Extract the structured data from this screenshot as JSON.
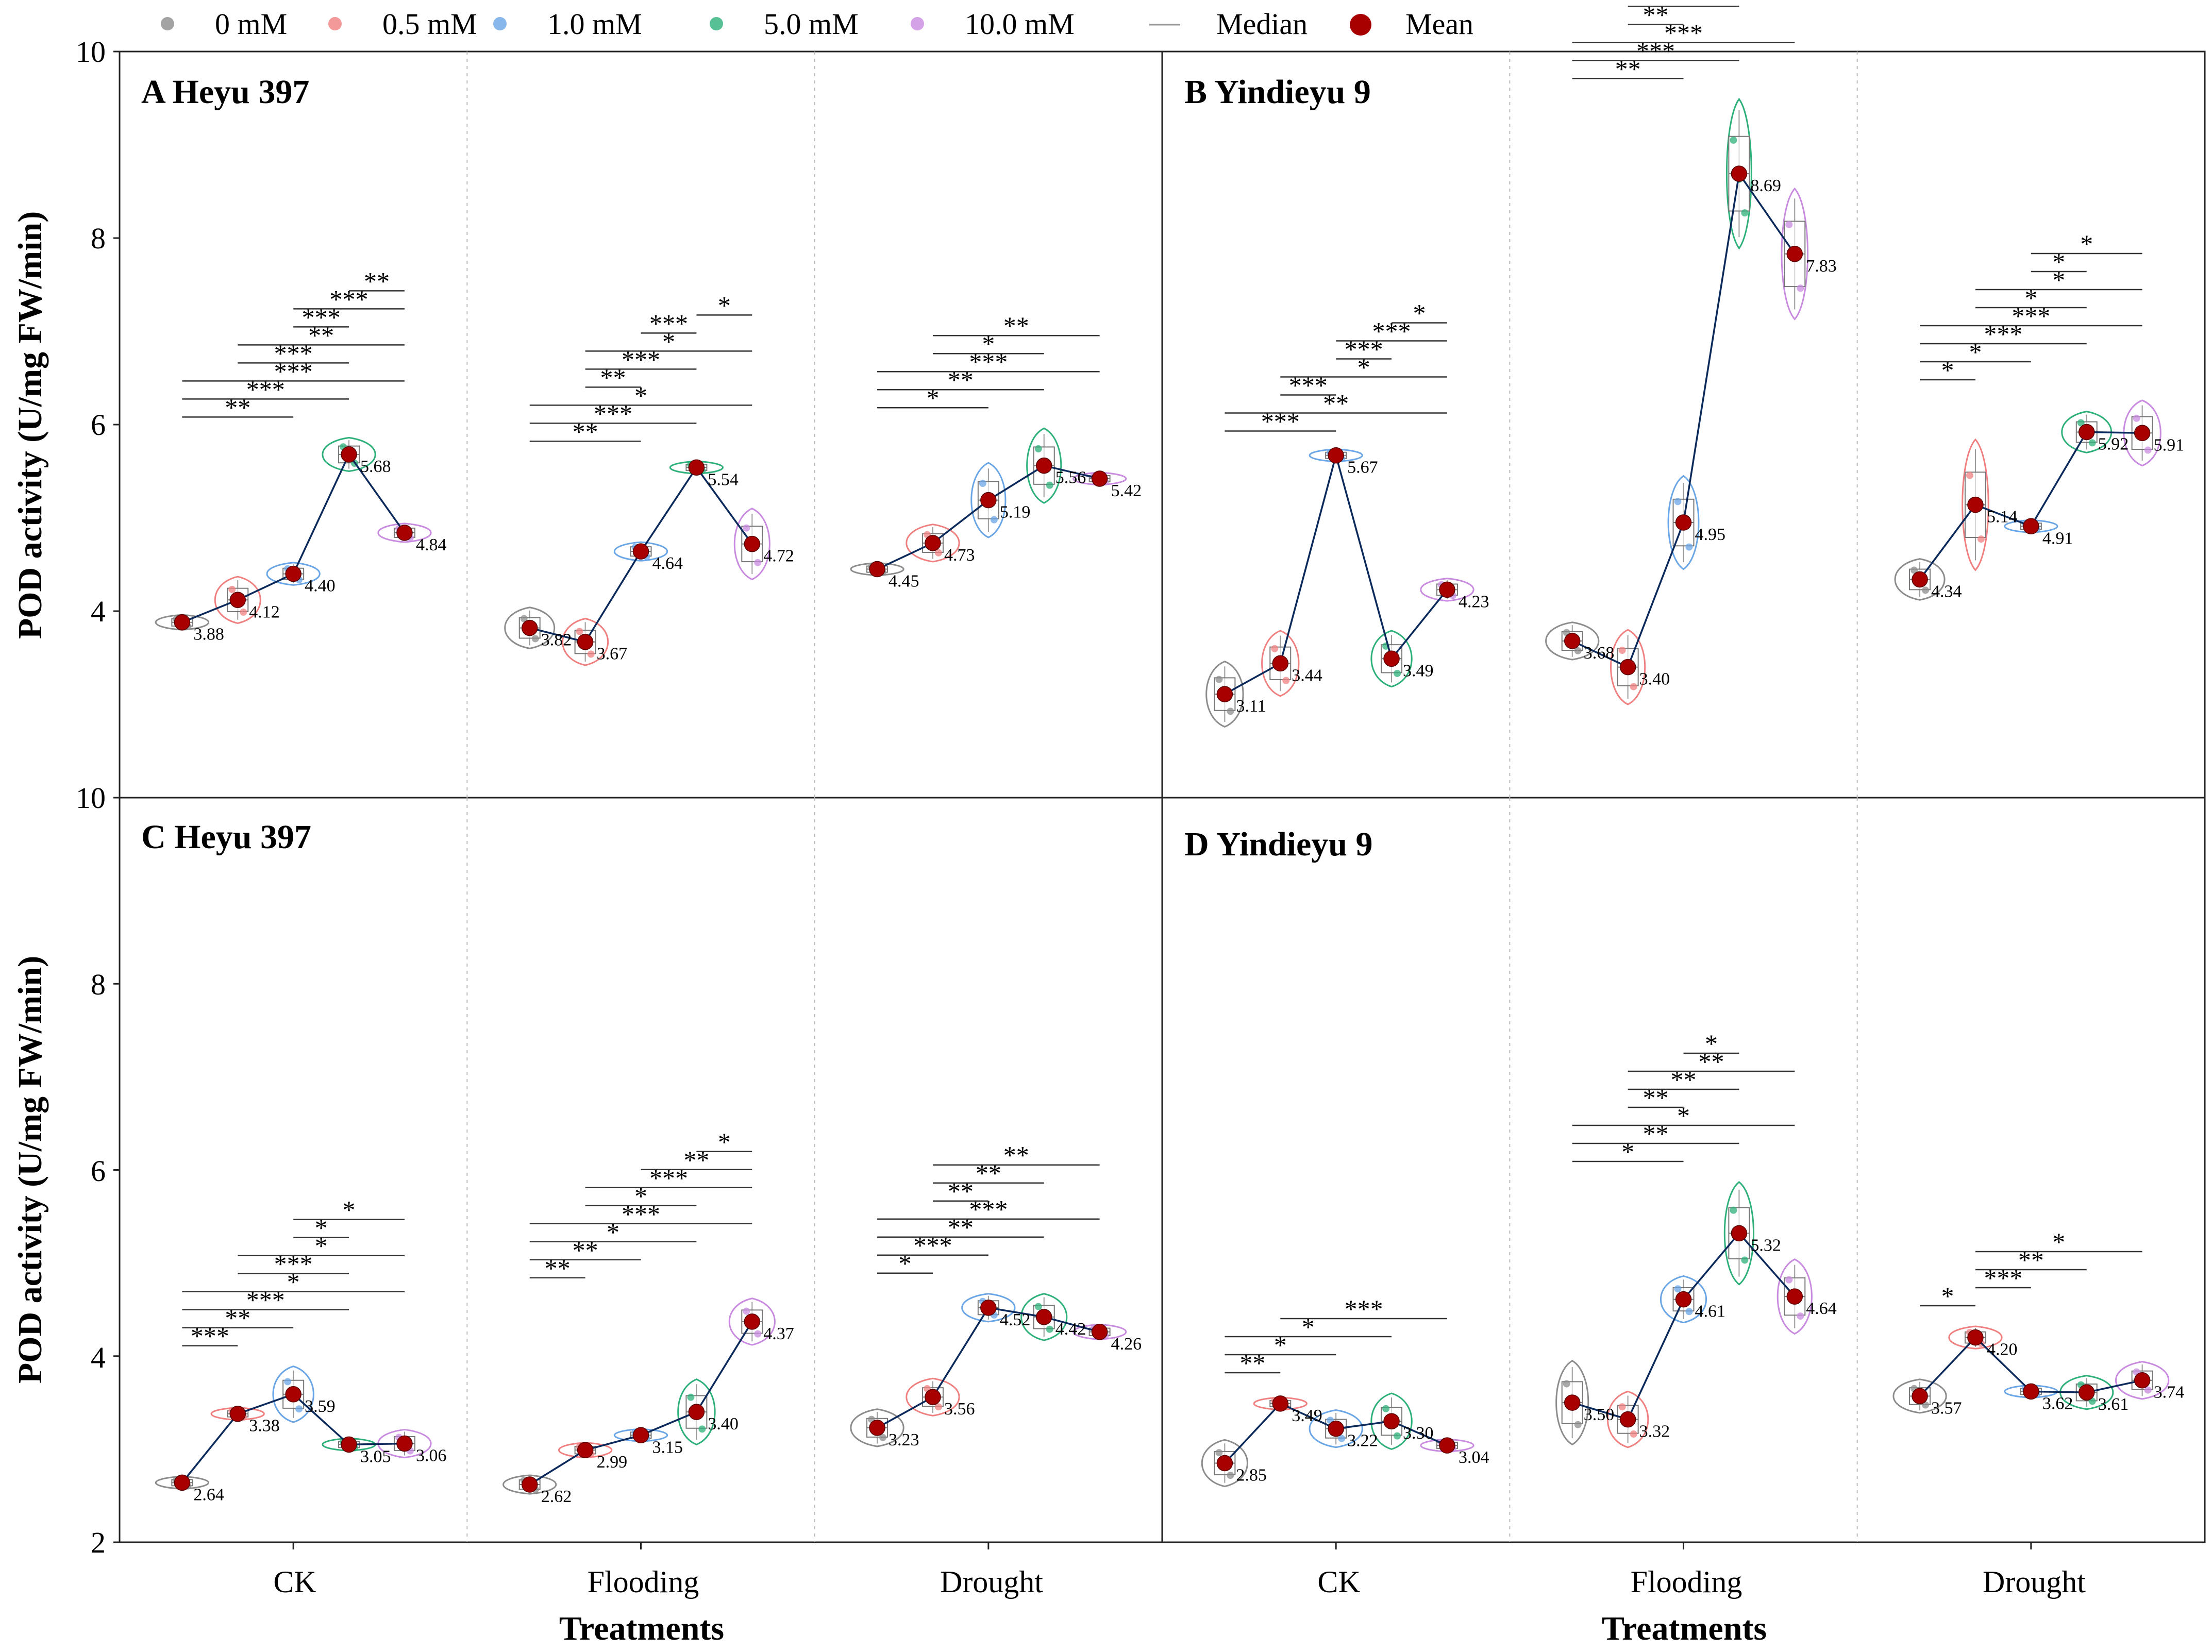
{
  "legend": {
    "items": [
      {
        "label": "0 mM",
        "color": "#8c8c8c"
      },
      {
        "label": "0.5 mM",
        "color": "#f08080"
      },
      {
        "label": "1.0 mM",
        "color": "#6aa6e6"
      },
      {
        "label": "5.0 mM",
        "color": "#2eb07a"
      },
      {
        "label": "10.0 mM",
        "color": "#c98be0"
      }
    ],
    "median_label": "Median",
    "mean_label": "Mean",
    "mean_color": "#a80000",
    "line_color": "#0b2a5b"
  },
  "axes": {
    "ylabel": "POD activity (U/mg FW/min)",
    "xlabel": "Treatments",
    "top_ylim": [
      2,
      10
    ],
    "top_yticks": [
      "10",
      "8",
      "6",
      "4"
    ],
    "bottom_ylim": [
      2,
      10
    ],
    "bottom_yticks": [
      "10",
      "8",
      "6",
      "4",
      "2"
    ],
    "categories": [
      "CK",
      "Flooding",
      "Drought"
    ],
    "grid": "dotted vertical separators between treatments"
  },
  "chart_data": [
    {
      "type": "box-violin",
      "panel": "A Heyu 397",
      "categories": [
        "CK",
        "Flooding",
        "Drought"
      ],
      "series_labels": [
        "0 mM",
        "0.5 mM",
        "1.0 mM",
        "5.0 mM",
        "10.0 mM"
      ],
      "means": [
        [
          3.88,
          4.12,
          4.4,
          5.68,
          4.84
        ],
        [
          3.82,
          3.67,
          4.64,
          5.54,
          4.72
        ],
        [
          4.45,
          4.73,
          5.19,
          5.56,
          5.42
        ]
      ],
      "mean_labels": [
        [
          "3.88",
          "4.12",
          "4.40",
          "5.68",
          "4.84"
        ],
        [
          "3.82",
          "3.67",
          "4.64",
          "5.54",
          "4.72"
        ],
        [
          "4.45",
          "4.73",
          "5.19",
          "5.56",
          "5.42"
        ]
      ],
      "spread": [
        [
          0.08,
          0.25,
          0.12,
          0.18,
          0.1
        ],
        [
          0.22,
          0.25,
          0.1,
          0.06,
          0.38
        ],
        [
          0.04,
          0.2,
          0.4,
          0.4,
          0.06
        ]
      ],
      "significance": [
        [
          {
            "a": 0,
            "b": 2,
            "label": "**"
          },
          {
            "a": 0,
            "b": 3,
            "label": "***"
          },
          {
            "a": 0,
            "b": 4,
            "label": "***"
          },
          {
            "a": 1,
            "b": 3,
            "label": "***"
          },
          {
            "a": 1,
            "b": 4,
            "label": "**"
          },
          {
            "a": 2,
            "b": 3,
            "label": "***"
          },
          {
            "a": 2,
            "b": 4,
            "label": "***"
          },
          {
            "a": 3,
            "b": 4,
            "label": "**"
          }
        ],
        [
          {
            "a": 0,
            "b": 2,
            "label": "**"
          },
          {
            "a": 0,
            "b": 3,
            "label": "***"
          },
          {
            "a": 0,
            "b": 4,
            "label": "*"
          },
          {
            "a": 1,
            "b": 2,
            "label": "**"
          },
          {
            "a": 1,
            "b": 3,
            "label": "***"
          },
          {
            "a": 1,
            "b": 4,
            "label": "*"
          },
          {
            "a": 2,
            "b": 3,
            "label": "***"
          },
          {
            "a": 3,
            "b": 4,
            "label": "*"
          }
        ],
        [
          {
            "a": 0,
            "b": 2,
            "label": "*"
          },
          {
            "a": 0,
            "b": 3,
            "label": "**"
          },
          {
            "a": 0,
            "b": 4,
            "label": "***"
          },
          {
            "a": 1,
            "b": 3,
            "label": "*"
          },
          {
            "a": 1,
            "b": 4,
            "label": "**"
          }
        ]
      ]
    },
    {
      "type": "box-violin",
      "panel": "B Yindieyu 9",
      "categories": [
        "CK",
        "Flooding",
        "Drought"
      ],
      "series_labels": [
        "0 mM",
        "0.5 mM",
        "1.0 mM",
        "5.0 mM",
        "10.0 mM"
      ],
      "means": [
        [
          3.11,
          3.44,
          5.67,
          3.49,
          4.23
        ],
        [
          3.68,
          3.4,
          4.95,
          8.69,
          7.83
        ],
        [
          4.34,
          5.14,
          4.91,
          5.92,
          5.91
        ]
      ],
      "mean_labels": [
        [
          "3.11",
          "3.44",
          "5.67",
          "3.49",
          "4.23"
        ],
        [
          "3.68",
          "3.40",
          "4.95",
          "8.69",
          "7.83"
        ],
        [
          "4.34",
          "5.14",
          "4.91",
          "5.92",
          "5.91"
        ]
      ],
      "spread": [
        [
          0.35,
          0.35,
          0.04,
          0.3,
          0.12
        ],
        [
          0.2,
          0.4,
          0.5,
          0.8,
          0.7
        ],
        [
          0.22,
          0.7,
          0.04,
          0.22,
          0.35
        ]
      ],
      "significance": [
        [
          {
            "a": 0,
            "b": 2,
            "label": "***"
          },
          {
            "a": 0,
            "b": 4,
            "label": "**"
          },
          {
            "a": 1,
            "b": 2,
            "label": "***"
          },
          {
            "a": 1,
            "b": 4,
            "label": "*"
          },
          {
            "a": 2,
            "b": 3,
            "label": "***"
          },
          {
            "a": 2,
            "b": 4,
            "label": "***"
          },
          {
            "a": 3,
            "b": 4,
            "label": "*"
          }
        ],
        [
          {
            "a": 0,
            "b": 2,
            "label": "**"
          },
          {
            "a": 0,
            "b": 3,
            "label": "***"
          },
          {
            "a": 0,
            "b": 4,
            "label": "***"
          },
          {
            "a": 1,
            "b": 2,
            "label": "**"
          },
          {
            "a": 1,
            "b": 3,
            "label": "***"
          },
          {
            "a": 1,
            "b": 4,
            "label": "***"
          },
          {
            "a": 2,
            "b": 3,
            "label": "***"
          },
          {
            "a": 2,
            "b": 4,
            "label": "**"
          }
        ],
        [
          {
            "a": 0,
            "b": 1,
            "label": "*"
          },
          {
            "a": 0,
            "b": 2,
            "label": "*"
          },
          {
            "a": 0,
            "b": 3,
            "label": "***"
          },
          {
            "a": 0,
            "b": 4,
            "label": "***"
          },
          {
            "a": 1,
            "b": 3,
            "label": "*"
          },
          {
            "a": 1,
            "b": 4,
            "label": "*"
          },
          {
            "a": 2,
            "b": 3,
            "label": "*"
          },
          {
            "a": 2,
            "b": 4,
            "label": "*"
          }
        ]
      ]
    },
    {
      "type": "box-violin",
      "panel": "C Heyu 397",
      "categories": [
        "CK",
        "Flooding",
        "Drought"
      ],
      "series_labels": [
        "0 mM",
        "0.5 mM",
        "1.0 mM",
        "5.0 mM",
        "10.0 mM"
      ],
      "means": [
        [
          2.64,
          3.38,
          3.59,
          3.05,
          3.06
        ],
        [
          2.62,
          2.99,
          3.15,
          3.4,
          4.37
        ],
        [
          3.23,
          3.56,
          4.52,
          4.42,
          4.26
        ]
      ],
      "mean_labels": [
        [
          "2.64",
          "3.38",
          "3.59",
          "3.05",
          "3.06"
        ],
        [
          "2.62",
          "2.99",
          "3.15",
          "3.40",
          "4.37"
        ],
        [
          "3.23",
          "3.56",
          "4.52",
          "4.42",
          "4.26"
        ]
      ],
      "spread": [
        [
          0.05,
          0.05,
          0.3,
          0.05,
          0.15
        ],
        [
          0.1,
          0.08,
          0.05,
          0.35,
          0.25
        ],
        [
          0.2,
          0.2,
          0.15,
          0.25,
          0.08
        ]
      ],
      "significance": [
        [
          {
            "a": 0,
            "b": 1,
            "label": "***"
          },
          {
            "a": 0,
            "b": 2,
            "label": "**"
          },
          {
            "a": 0,
            "b": 3,
            "label": "***"
          },
          {
            "a": 0,
            "b": 4,
            "label": "*"
          },
          {
            "a": 1,
            "b": 3,
            "label": "***"
          },
          {
            "a": 1,
            "b": 4,
            "label": "*"
          },
          {
            "a": 2,
            "b": 3,
            "label": "*"
          },
          {
            "a": 2,
            "b": 4,
            "label": "*"
          }
        ],
        [
          {
            "a": 0,
            "b": 1,
            "label": "**"
          },
          {
            "a": 0,
            "b": 2,
            "label": "**"
          },
          {
            "a": 0,
            "b": 3,
            "label": "*"
          },
          {
            "a": 0,
            "b": 4,
            "label": "***"
          },
          {
            "a": 1,
            "b": 3,
            "label": "*"
          },
          {
            "a": 1,
            "b": 4,
            "label": "***"
          },
          {
            "a": 2,
            "b": 4,
            "label": "**"
          },
          {
            "a": 3,
            "b": 4,
            "label": "*"
          }
        ],
        [
          {
            "a": 0,
            "b": 1,
            "label": "*"
          },
          {
            "a": 0,
            "b": 2,
            "label": "***"
          },
          {
            "a": 0,
            "b": 3,
            "label": "**"
          },
          {
            "a": 0,
            "b": 4,
            "label": "***"
          },
          {
            "a": 1,
            "b": 2,
            "label": "**"
          },
          {
            "a": 1,
            "b": 3,
            "label": "**"
          },
          {
            "a": 1,
            "b": 4,
            "label": "**"
          }
        ]
      ]
    },
    {
      "type": "box-violin",
      "panel": "D Yindieyu 9",
      "categories": [
        "CK",
        "Flooding",
        "Drought"
      ],
      "series_labels": [
        "0 mM",
        "0.5 mM",
        "1.0 mM",
        "5.0 mM",
        "10.0 mM"
      ],
      "means": [
        [
          2.85,
          3.49,
          3.22,
          3.3,
          3.04
        ],
        [
          3.5,
          3.32,
          4.61,
          5.32,
          4.64
        ],
        [
          3.57,
          4.2,
          3.62,
          3.61,
          3.74
        ]
      ],
      "mean_labels": [
        [
          "2.85",
          "3.49",
          "3.22",
          "3.30",
          "3.04"
        ],
        [
          "3.50",
          "3.32",
          "4.61",
          "5.32",
          "4.64"
        ],
        [
          "3.57",
          "4.20",
          "3.62",
          "3.61",
          "3.74"
        ]
      ],
      "spread": [
        [
          0.25,
          0.04,
          0.2,
          0.3,
          0.05
        ],
        [
          0.45,
          0.3,
          0.25,
          0.55,
          0.4
        ],
        [
          0.18,
          0.12,
          0.06,
          0.18,
          0.2
        ]
      ],
      "significance": [
        [
          {
            "a": 0,
            "b": 1,
            "label": "**"
          },
          {
            "a": 0,
            "b": 2,
            "label": "*"
          },
          {
            "a": 0,
            "b": 3,
            "label": "*"
          },
          {
            "a": 1,
            "b": 4,
            "label": "***"
          }
        ],
        [
          {
            "a": 0,
            "b": 2,
            "label": "*"
          },
          {
            "a": 0,
            "b": 3,
            "label": "**"
          },
          {
            "a": 0,
            "b": 4,
            "label": "*"
          },
          {
            "a": 1,
            "b": 2,
            "label": "**"
          },
          {
            "a": 1,
            "b": 3,
            "label": "**"
          },
          {
            "a": 1,
            "b": 4,
            "label": "**"
          },
          {
            "a": 2,
            "b": 3,
            "label": "*"
          }
        ],
        [
          {
            "a": 0,
            "b": 1,
            "label": "*"
          },
          {
            "a": 1,
            "b": 2,
            "label": "***"
          },
          {
            "a": 1,
            "b": 3,
            "label": "**"
          },
          {
            "a": 1,
            "b": 4,
            "label": "*"
          }
        ]
      ]
    }
  ]
}
